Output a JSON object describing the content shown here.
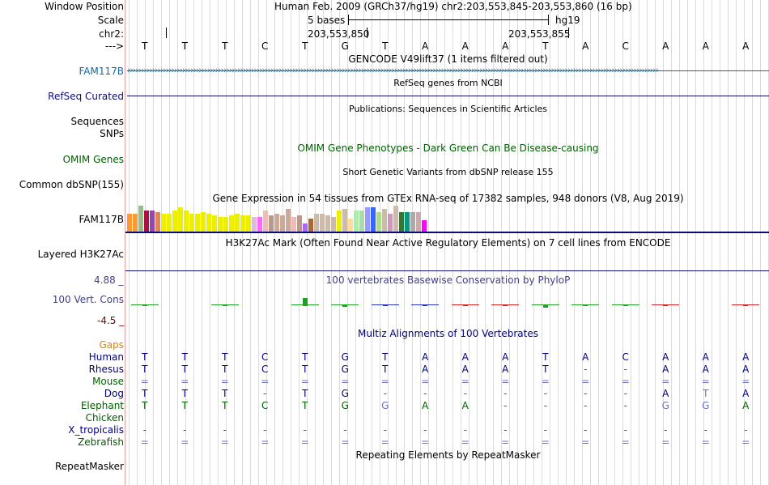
{
  "header": {
    "window_position_label": "Window Position",
    "scale_label": "Scale",
    "chrom_label": "chr2:",
    "arrow_label": "--->",
    "position_text": "Human Feb. 2009 (GRCh37/hg19)   chr2:203,553,845-203,553,860 (16 bp)",
    "scale_text": "5 bases",
    "assembly": "hg19",
    "coord_1": "203,553,850",
    "coord_2": "203,553,855"
  },
  "sequence": [
    "T",
    "T",
    "T",
    "C",
    "T",
    "G",
    "T",
    "A",
    "A",
    "A",
    "T",
    "A",
    "C",
    "A",
    "A",
    "A"
  ],
  "tracks": {
    "gencode_title": "GENCODE V49lift37 (1 items filtered out)",
    "fam117b_label": "FAM117B",
    "refseq_label": "RefSeq Curated",
    "refseq_title": "RefSeq genes from NCBI",
    "publications_title": "Publications: Sequences in Scientific Articles",
    "sequences_label": "Sequences",
    "snps_label": "SNPs",
    "omim_label": "OMIM Genes",
    "omim_title": "OMIM Gene Phenotypes - Dark Green Can Be Disease-causing",
    "dbsnp_label": "Common dbSNP(155)",
    "dbsnp_title": "Short Genetic Variants from dbSNP release 155",
    "gtex_title": "Gene Expression in 54 tissues from GTEx RNA-seq of 17382 samples, 948 donors (V8, Aug 2019)",
    "gtex_label": "FAM117B",
    "h3k27_title": "H3K27Ac Mark (Often Found Near Active Regulatory Elements) on 7 cell lines from ENCODE",
    "h3k27_label": "Layered H3K27Ac",
    "cons_title": "100 vertebrates Basewise Conservation by PhyloP",
    "cons_label": "100 Vert. Cons",
    "cons_max": "4.88 _",
    "cons_min": "-4.5 _",
    "multiz_title": "Multiz Alignments of 100 Vertebrates",
    "gaps_label": "Gaps",
    "repeat_label": "RepeatMasker",
    "repeat_title": "Repeating Elements by RepeatMasker"
  },
  "gtex_bars": [
    {
      "c": "#ff9933",
      "h": 22
    },
    {
      "c": "#ff9933",
      "h": 22
    },
    {
      "c": "#99bb88",
      "h": 32
    },
    {
      "c": "#aa1144",
      "h": 26
    },
    {
      "c": "#9944aa",
      "h": 26
    },
    {
      "c": "#dd8855",
      "h": 24
    },
    {
      "c": "#eeee00",
      "h": 22
    },
    {
      "c": "#eeee00",
      "h": 22
    },
    {
      "c": "#eeee00",
      "h": 26
    },
    {
      "c": "#eeee00",
      "h": 30
    },
    {
      "c": "#eeee00",
      "h": 26
    },
    {
      "c": "#eeee00",
      "h": 22
    },
    {
      "c": "#eeee00",
      "h": 22
    },
    {
      "c": "#eeee00",
      "h": 24
    },
    {
      "c": "#eeee00",
      "h": 22
    },
    {
      "c": "#eeee00",
      "h": 20
    },
    {
      "c": "#eeee00",
      "h": 18
    },
    {
      "c": "#eeee00",
      "h": 18
    },
    {
      "c": "#eeee00",
      "h": 20
    },
    {
      "c": "#eeee00",
      "h": 22
    },
    {
      "c": "#eeee00",
      "h": 20
    },
    {
      "c": "#eeee00",
      "h": 20
    },
    {
      "c": "#ddbbdd",
      "h": 18
    },
    {
      "c": "#ff66ff",
      "h": 18
    },
    {
      "c": "#eebbbb",
      "h": 26
    },
    {
      "c": "#bb9988",
      "h": 20
    },
    {
      "c": "#ccaa99",
      "h": 22
    },
    {
      "c": "#ccaa99",
      "h": 20
    },
    {
      "c": "#ccaa99",
      "h": 28
    },
    {
      "c": "#eebbbb",
      "h": 18
    },
    {
      "c": "#bb9988",
      "h": 20
    },
    {
      "c": "#aa66ff",
      "h": 10
    },
    {
      "c": "#aa6633",
      "h": 16
    },
    {
      "c": "#ccbbaa",
      "h": 22
    },
    {
      "c": "#ccbbaa",
      "h": 22
    },
    {
      "c": "#ccbbaa",
      "h": 20
    },
    {
      "c": "#ccbbaa",
      "h": 18
    },
    {
      "c": "#eeee00",
      "h": 26
    },
    {
      "c": "#ccbbaa",
      "h": 28
    },
    {
      "c": "#ffdd99",
      "h": 16
    },
    {
      "c": "#aaeeaa",
      "h": 26
    },
    {
      "c": "#aaddaa",
      "h": 26
    },
    {
      "c": "#9999ff",
      "h": 30
    },
    {
      "c": "#3366ff",
      "h": 30
    },
    {
      "c": "#aadd88",
      "h": 24
    },
    {
      "c": "#ccbbaa",
      "h": 28
    },
    {
      "c": "#cc99bb",
      "h": 22
    },
    {
      "c": "#ccbbaa",
      "h": 32
    },
    {
      "c": "#337733",
      "h": 24
    },
    {
      "c": "#009988",
      "h": 24
    },
    {
      "c": "#aaaaaa",
      "h": 24
    },
    {
      "c": "#ccaaaa",
      "h": 24
    },
    {
      "c": "#ff00ff",
      "h": 14
    }
  ],
  "cons_values": [
    0.1,
    0,
    0.2,
    0,
    1.0,
    0.3,
    0.2,
    0.2,
    0.2,
    0.1,
    0.4,
    0.1,
    0.2,
    0.2,
    0,
    0.1
  ],
  "multiz": [
    {
      "species": "Human",
      "color": "#000080",
      "row": [
        "T",
        "T",
        "T",
        "C",
        "T",
        "G",
        "T",
        "A",
        "A",
        "A",
        "T",
        "A",
        "C",
        "A",
        "A",
        "A"
      ]
    },
    {
      "species": "Rhesus",
      "color": "#000080",
      "row": [
        "T",
        "T",
        "T",
        "C",
        "T",
        "G",
        "T",
        "A",
        "A",
        "A",
        "T",
        "-",
        "-",
        "A",
        "A",
        "A"
      ]
    },
    {
      "species": "Mouse",
      "color": "#006000",
      "row": [
        "=",
        "=",
        "=",
        "=",
        "=",
        "=",
        "=",
        "=",
        "=",
        "=",
        "=",
        "=",
        "=",
        "=",
        "=",
        "="
      ]
    },
    {
      "species": "Dog",
      "color": "#000080",
      "row": [
        "T",
        "T",
        "T",
        "-",
        "T",
        "G",
        "-",
        "-",
        "-",
        "-",
        "-",
        "-",
        "-",
        "A",
        "T",
        "A"
      ]
    },
    {
      "species": "Elephant",
      "color": "#006000",
      "row": [
        "T",
        "T",
        "T",
        "C",
        "T",
        "G",
        "G",
        "A",
        "A",
        "-",
        "-",
        "-",
        "-",
        "G",
        "G",
        "A"
      ]
    },
    {
      "species": "Chicken",
      "color": "#006000",
      "row": [
        "",
        "",
        "",
        "",
        "",
        "",
        "",
        "",
        "",
        "",
        "",
        "",
        "",
        "",
        "",
        ""
      ]
    },
    {
      "species": "X_tropicalis",
      "color": "#000080",
      "row": [
        "-",
        "-",
        "-",
        "-",
        "-",
        "-",
        "-",
        "-",
        "-",
        "-",
        "-",
        "-",
        "-",
        "-",
        "-",
        "-"
      ]
    },
    {
      "species": "Zebrafish",
      "color": "#006000",
      "row": [
        "=",
        "=",
        "=",
        "=",
        "=",
        "=",
        "=",
        "=",
        "=",
        "=",
        "=",
        "=",
        "=",
        "=",
        "=",
        "="
      ]
    }
  ],
  "colors": {
    "gencode": "#0c6cac",
    "refseq": "#0c0c78",
    "omim": "#006000",
    "cons": "#404090",
    "gaps": "#e08000",
    "separator": "#e8a0a0"
  }
}
